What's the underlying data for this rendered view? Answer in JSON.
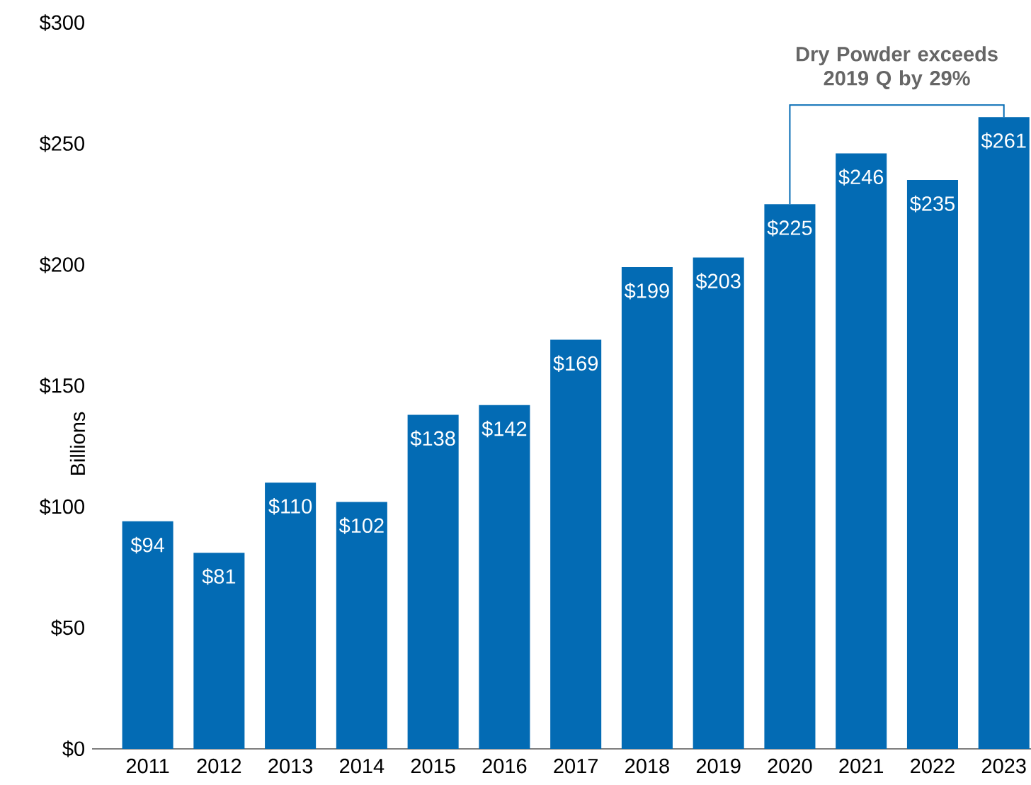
{
  "chart_data": {
    "type": "bar",
    "ylabel": "Billions",
    "categories": [
      "2011",
      "2012",
      "2013",
      "2014",
      "2015",
      "2016",
      "2017",
      "2018",
      "2019",
      "2020",
      "2021",
      "2022",
      "2023"
    ],
    "values": [
      94,
      81,
      110,
      102,
      138,
      142,
      169,
      199,
      203,
      225,
      246,
      235,
      261
    ],
    "value_labels": [
      "$94",
      "$81",
      "$110",
      "$102",
      "$138",
      "$142",
      "$169",
      "$199",
      "$203",
      "$225",
      "$246",
      "$235",
      "$261"
    ],
    "color": "#036bb4",
    "ylim": [
      0,
      300
    ],
    "yticks": [
      {
        "value": 0,
        "label": "$0"
      },
      {
        "value": 50,
        "label": "$50"
      },
      {
        "value": 100,
        "label": "$100"
      },
      {
        "value": 150,
        "label": "$150"
      },
      {
        "value": 200,
        "label": "$200"
      },
      {
        "value": 250,
        "label": "$250"
      },
      {
        "value": 300,
        "label": "$300"
      }
    ],
    "annotations": [
      {
        "text": "Dry Powder exceeds 2019 Q by 29%",
        "x": "2023",
        "y": 261
      }
    ]
  }
}
